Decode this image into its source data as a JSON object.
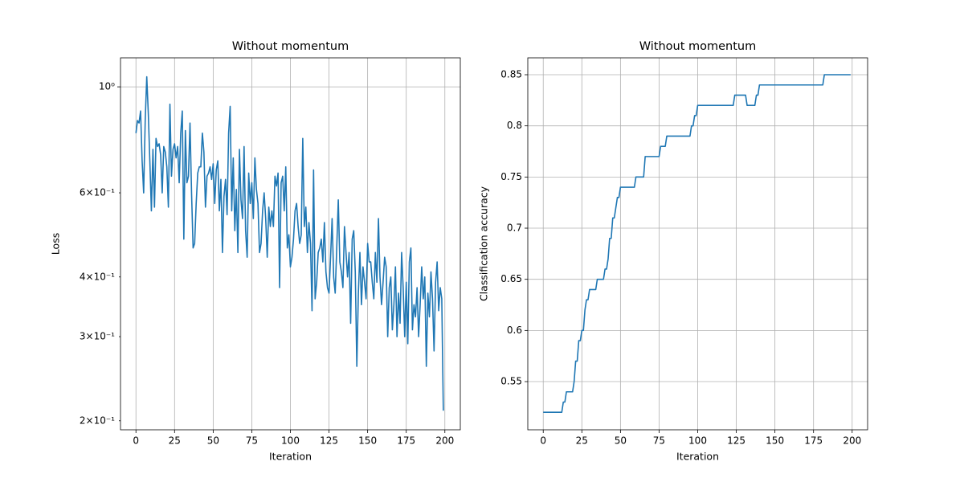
{
  "chart_data": [
    {
      "type": "line",
      "title": "Without momentum",
      "xlabel": "Iteration",
      "ylabel": "Loss",
      "color": "#1f77b4",
      "x": [
        0,
        1,
        2,
        3,
        4,
        5,
        6,
        7,
        8,
        9,
        10,
        11,
        12,
        13,
        14,
        15,
        16,
        17,
        18,
        19,
        20,
        21,
        22,
        23,
        24,
        25,
        26,
        27,
        28,
        29,
        30,
        31,
        32,
        33,
        34,
        35,
        36,
        37,
        38,
        39,
        40,
        41,
        42,
        43,
        44,
        45,
        46,
        47,
        48,
        49,
        50,
        51,
        52,
        53,
        54,
        55,
        56,
        57,
        58,
        59,
        60,
        61,
        62,
        63,
        64,
        65,
        66,
        67,
        68,
        69,
        70,
        71,
        72,
        73,
        74,
        75,
        76,
        77,
        78,
        79,
        80,
        81,
        82,
        83,
        84,
        85,
        86,
        87,
        88,
        89,
        90,
        91,
        92,
        93,
        94,
        95,
        96,
        97,
        98,
        99,
        100,
        101,
        102,
        103,
        104,
        105,
        106,
        107,
        108,
        109,
        110,
        111,
        112,
        113,
        114,
        115,
        116,
        117,
        118,
        119,
        120,
        121,
        122,
        123,
        124,
        125,
        126,
        127,
        128,
        129,
        130,
        131,
        132,
        133,
        134,
        135,
        136,
        137,
        138,
        139,
        140,
        141,
        142,
        143,
        144,
        145,
        146,
        147,
        148,
        149,
        150,
        151,
        152,
        153,
        154,
        155,
        156,
        157,
        158,
        159,
        160,
        161,
        162,
        163,
        164,
        165,
        166,
        167,
        168,
        169,
        170,
        171,
        172,
        173,
        174,
        175,
        176,
        177,
        178,
        179,
        180,
        181,
        182,
        183,
        184,
        185,
        186,
        187,
        188,
        189,
        190,
        191,
        192,
        193,
        194,
        195,
        196,
        197,
        198,
        199
      ],
      "values": [
        0.8,
        0.85,
        0.84,
        0.89,
        0.7,
        0.6,
        0.85,
        1.05,
        0.88,
        0.7,
        0.55,
        0.74,
        0.56,
        0.78,
        0.75,
        0.76,
        0.72,
        0.6,
        0.75,
        0.73,
        0.68,
        0.56,
        0.92,
        0.65,
        0.74,
        0.76,
        0.71,
        0.75,
        0.63,
        0.8,
        0.89,
        0.48,
        0.81,
        0.63,
        0.65,
        0.84,
        0.6,
        0.46,
        0.47,
        0.57,
        0.66,
        0.68,
        0.68,
        0.8,
        0.73,
        0.56,
        0.65,
        0.66,
        0.68,
        0.64,
        0.69,
        0.57,
        0.67,
        0.7,
        0.55,
        0.64,
        0.45,
        0.59,
        0.64,
        0.54,
        0.8,
        0.91,
        0.55,
        0.71,
        0.5,
        0.61,
        0.45,
        0.74,
        0.58,
        0.53,
        0.75,
        0.5,
        0.44,
        0.66,
        0.57,
        0.63,
        0.53,
        0.71,
        0.61,
        0.57,
        0.45,
        0.47,
        0.55,
        0.6,
        0.53,
        0.44,
        0.56,
        0.51,
        0.55,
        0.51,
        0.65,
        0.62,
        0.66,
        0.38,
        0.63,
        0.65,
        0.55,
        0.68,
        0.46,
        0.49,
        0.42,
        0.44,
        0.48,
        0.55,
        0.57,
        0.51,
        0.47,
        0.49,
        0.78,
        0.51,
        0.56,
        0.45,
        0.52,
        0.47,
        0.34,
        0.67,
        0.36,
        0.39,
        0.45,
        0.46,
        0.48,
        0.43,
        0.52,
        0.41,
        0.38,
        0.37,
        0.44,
        0.53,
        0.4,
        0.37,
        0.46,
        0.58,
        0.43,
        0.41,
        0.38,
        0.51,
        0.45,
        0.4,
        0.45,
        0.32,
        0.48,
        0.5,
        0.41,
        0.26,
        0.37,
        0.45,
        0.35,
        0.42,
        0.39,
        0.36,
        0.47,
        0.43,
        0.43,
        0.39,
        0.36,
        0.45,
        0.39,
        0.53,
        0.4,
        0.35,
        0.39,
        0.44,
        0.42,
        0.3,
        0.38,
        0.4,
        0.31,
        0.35,
        0.42,
        0.3,
        0.37,
        0.32,
        0.45,
        0.38,
        0.3,
        0.39,
        0.29,
        0.43,
        0.46,
        0.31,
        0.35,
        0.33,
        0.38,
        0.3,
        0.35,
        0.42,
        0.36,
        0.4,
        0.26,
        0.37,
        0.33,
        0.41,
        0.36,
        0.28,
        0.39,
        0.43,
        0.34,
        0.38,
        0.36,
        0.21
      ],
      "xlim": [
        -10,
        210
      ],
      "xticks": [
        0,
        25,
        50,
        75,
        100,
        125,
        150,
        175,
        200
      ],
      "ylim": [
        0.1915,
        1.15
      ],
      "yscale": "log",
      "yticks": [
        {
          "value": 1,
          "label": "10⁰"
        }
      ],
      "yticks_minor": [
        {
          "value": 0.2,
          "label": "2×10⁻¹"
        },
        {
          "value": 0.3,
          "label": "3×10⁻¹"
        },
        {
          "value": 0.4,
          "label": "4×10⁻¹"
        },
        {
          "value": 0.6,
          "label": "6×10⁻¹"
        }
      ],
      "grid": true
    },
    {
      "type": "line",
      "title": "Without momentum",
      "xlabel": "Iteration",
      "ylabel": "Classification accuracy",
      "color": "#1f77b4",
      "x": [
        0,
        1,
        2,
        3,
        4,
        5,
        6,
        7,
        8,
        9,
        10,
        11,
        12,
        13,
        14,
        15,
        16,
        17,
        18,
        19,
        20,
        21,
        22,
        23,
        24,
        25,
        26,
        27,
        28,
        29,
        30,
        31,
        32,
        33,
        34,
        35,
        36,
        37,
        38,
        39,
        40,
        41,
        42,
        43,
        44,
        45,
        46,
        47,
        48,
        49,
        50,
        51,
        52,
        53,
        54,
        55,
        56,
        57,
        58,
        59,
        60,
        61,
        62,
        63,
        64,
        65,
        66,
        67,
        68,
        69,
        70,
        71,
        72,
        73,
        74,
        75,
        76,
        77,
        78,
        79,
        80,
        81,
        82,
        83,
        84,
        85,
        86,
        87,
        88,
        89,
        90,
        91,
        92,
        93,
        94,
        95,
        96,
        97,
        98,
        99,
        100,
        101,
        102,
        103,
        104,
        105,
        106,
        107,
        108,
        109,
        110,
        111,
        112,
        113,
        114,
        115,
        116,
        117,
        118,
        119,
        120,
        121,
        122,
        123,
        124,
        125,
        126,
        127,
        128,
        129,
        130,
        131,
        132,
        133,
        134,
        135,
        136,
        137,
        138,
        139,
        140,
        141,
        142,
        143,
        144,
        145,
        146,
        147,
        148,
        149,
        150,
        151,
        152,
        153,
        154,
        155,
        156,
        157,
        158,
        159,
        160,
        161,
        162,
        163,
        164,
        165,
        166,
        167,
        168,
        169,
        170,
        171,
        172,
        173,
        174,
        175,
        176,
        177,
        178,
        179,
        180,
        181,
        182,
        183,
        184,
        185,
        186,
        187,
        188,
        189,
        190,
        191,
        192,
        193,
        194,
        195,
        196,
        197,
        198,
        199
      ],
      "values": [
        0.52,
        0.52,
        0.52,
        0.52,
        0.52,
        0.52,
        0.52,
        0.52,
        0.52,
        0.52,
        0.52,
        0.52,
        0.52,
        0.53,
        0.53,
        0.54,
        0.54,
        0.54,
        0.54,
        0.54,
        0.55,
        0.57,
        0.57,
        0.59,
        0.59,
        0.6,
        0.6,
        0.62,
        0.63,
        0.63,
        0.64,
        0.64,
        0.64,
        0.64,
        0.64,
        0.65,
        0.65,
        0.65,
        0.65,
        0.65,
        0.66,
        0.66,
        0.67,
        0.69,
        0.69,
        0.71,
        0.71,
        0.72,
        0.73,
        0.73,
        0.74,
        0.74,
        0.74,
        0.74,
        0.74,
        0.74,
        0.74,
        0.74,
        0.74,
        0.74,
        0.75,
        0.75,
        0.75,
        0.75,
        0.75,
        0.75,
        0.77,
        0.77,
        0.77,
        0.77,
        0.77,
        0.77,
        0.77,
        0.77,
        0.77,
        0.77,
        0.78,
        0.78,
        0.78,
        0.78,
        0.79,
        0.79,
        0.79,
        0.79,
        0.79,
        0.79,
        0.79,
        0.79,
        0.79,
        0.79,
        0.79,
        0.79,
        0.79,
        0.79,
        0.79,
        0.79,
        0.8,
        0.8,
        0.81,
        0.81,
        0.82,
        0.82,
        0.82,
        0.82,
        0.82,
        0.82,
        0.82,
        0.82,
        0.82,
        0.82,
        0.82,
        0.82,
        0.82,
        0.82,
        0.82,
        0.82,
        0.82,
        0.82,
        0.82,
        0.82,
        0.82,
        0.82,
        0.82,
        0.82,
        0.83,
        0.83,
        0.83,
        0.83,
        0.83,
        0.83,
        0.83,
        0.83,
        0.82,
        0.82,
        0.82,
        0.82,
        0.82,
        0.82,
        0.83,
        0.83,
        0.84,
        0.84,
        0.84,
        0.84,
        0.84,
        0.84,
        0.84,
        0.84,
        0.84,
        0.84,
        0.84,
        0.84,
        0.84,
        0.84,
        0.84,
        0.84,
        0.84,
        0.84,
        0.84,
        0.84,
        0.84,
        0.84,
        0.84,
        0.84,
        0.84,
        0.84,
        0.84,
        0.84,
        0.84,
        0.84,
        0.84,
        0.84,
        0.84,
        0.84,
        0.84,
        0.84,
        0.84,
        0.84,
        0.84,
        0.84,
        0.84,
        0.84,
        0.85,
        0.85,
        0.85,
        0.85,
        0.85,
        0.85,
        0.85,
        0.85,
        0.85,
        0.85,
        0.85,
        0.85,
        0.85,
        0.85,
        0.85,
        0.85,
        0.85,
        0.85
      ],
      "xlim": [
        -10,
        210
      ],
      "xticks": [
        0,
        25,
        50,
        75,
        100,
        125,
        150,
        175,
        200
      ],
      "ylim": [
        0.5029,
        0.8665
      ],
      "yticks": [
        0.55,
        0.6,
        0.65,
        0.7,
        0.75,
        0.8,
        0.85
      ],
      "grid": true
    }
  ]
}
